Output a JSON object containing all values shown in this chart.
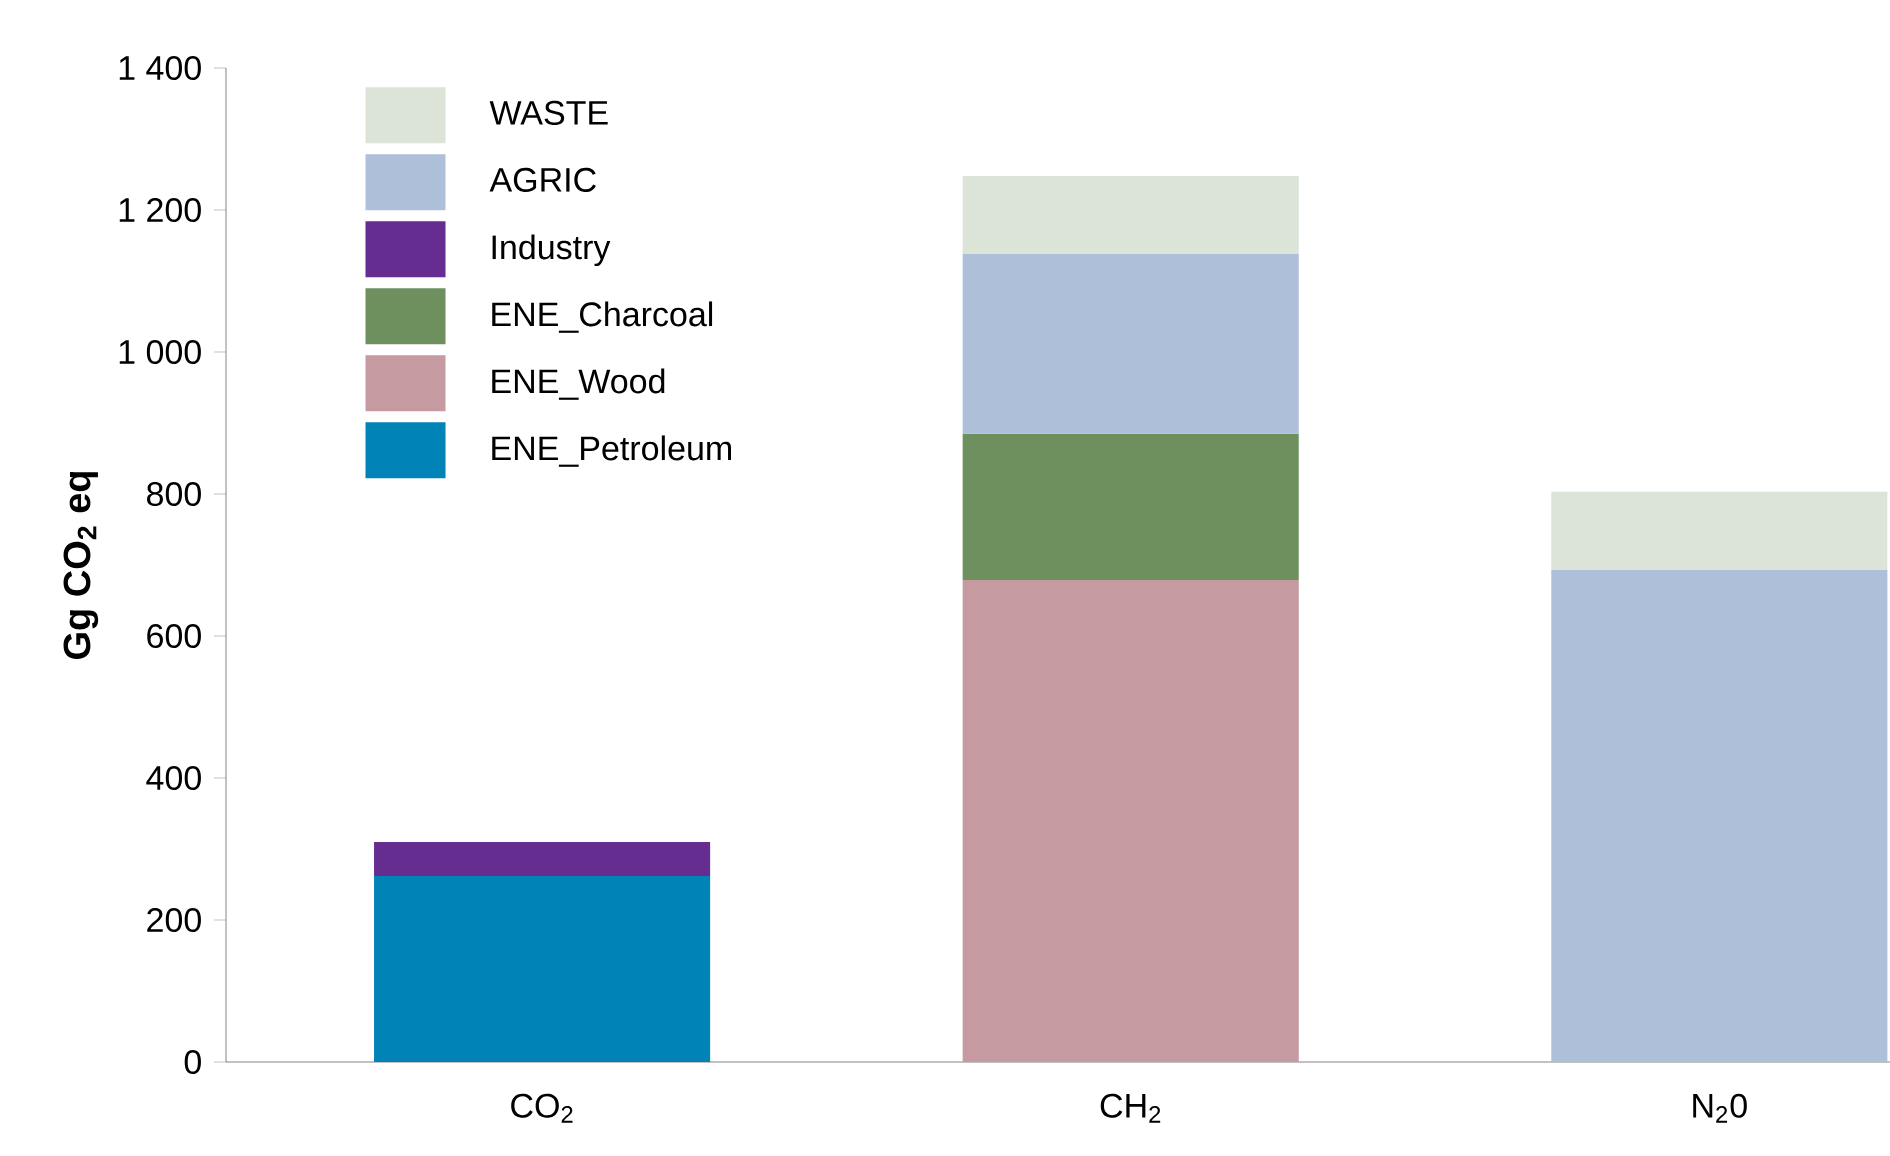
{
  "chart_data": {
    "type": "bar",
    "stacked": true,
    "ylabel": "**Gg CO$_{2}$ eq**",
    "categories": [
      "CO$_{2}$",
      "CH$_{2}$",
      "N$_{2}$0"
    ],
    "series": [
      {
        "name": "ENE_Petroleum",
        "color": "#0083b6",
        "values": [
          262,
          null,
          null
        ]
      },
      {
        "name": "ENE_Wood",
        "color": "#c59aa0",
        "values": [
          null,
          679,
          null
        ]
      },
      {
        "name": "ENE_Charcoal",
        "color": "#6d905e",
        "values": [
          null,
          206,
          null
        ]
      },
      {
        "name": "Industry",
        "color": "#662d91",
        "values": [
          48,
          null,
          null
        ]
      },
      {
        "name": "AGRIC",
        "color": "#aebfd9",
        "values": [
          null,
          253,
          693
        ]
      },
      {
        "name": "WASTE",
        "color": "#dce4d8",
        "values": [
          null,
          110,
          110
        ]
      }
    ],
    "ylim": [
      0,
      1400
    ],
    "yticks": [
      0,
      200,
      400,
      600,
      800,
      {
        "value": 1000,
        "label": "1 000"
      },
      {
        "value": 1200,
        "label": "1 200"
      },
      {
        "value": 1400,
        "label": "1 400"
      }
    ],
    "legend": "top left"
  }
}
